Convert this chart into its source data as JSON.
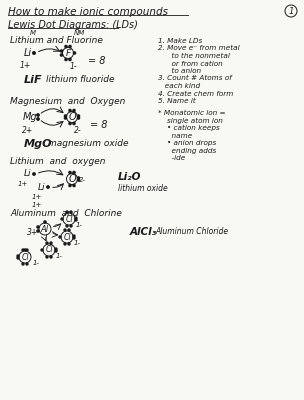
{
  "background_color": "#f8f8f5",
  "title": "How to make ionic compounds",
  "subtitle": "Lewis Dot Diagrams: (LDs)",
  "page_number": "1",
  "steps": [
    "1. Make LDs",
    "2. Move e⁻ from metal",
    "      to the nonmetal",
    "      or from cation",
    "      to anion",
    "3. Count # Atoms of",
    "   each kind",
    "4. Create chem form",
    "5. Name it"
  ],
  "note": [
    "* Monatomic ion =",
    "    single atom ion",
    "    • cation keeps",
    "      name",
    "    • anion drops",
    "      ending adds",
    "      -ide"
  ],
  "s1_heading": "Lithium and Fluorine",
  "s1_m": "M",
  "s1_nm": "NM",
  "s1_formula": "LiF",
  "s1_name": "lithium fluoride",
  "s2_heading": "Magnesium  and  Oxygen",
  "s2_formula": "MgO",
  "s2_name": "magnesium oxide",
  "s3_heading": "Lithium  and  oxygen",
  "s3_formula": "Li₂O",
  "s3_name": "lithium oxide",
  "s4_heading": "Aluminum  and  Chlorine",
  "s4_formula": "AlCl₃",
  "s4_name": "Aluminum Chloride"
}
